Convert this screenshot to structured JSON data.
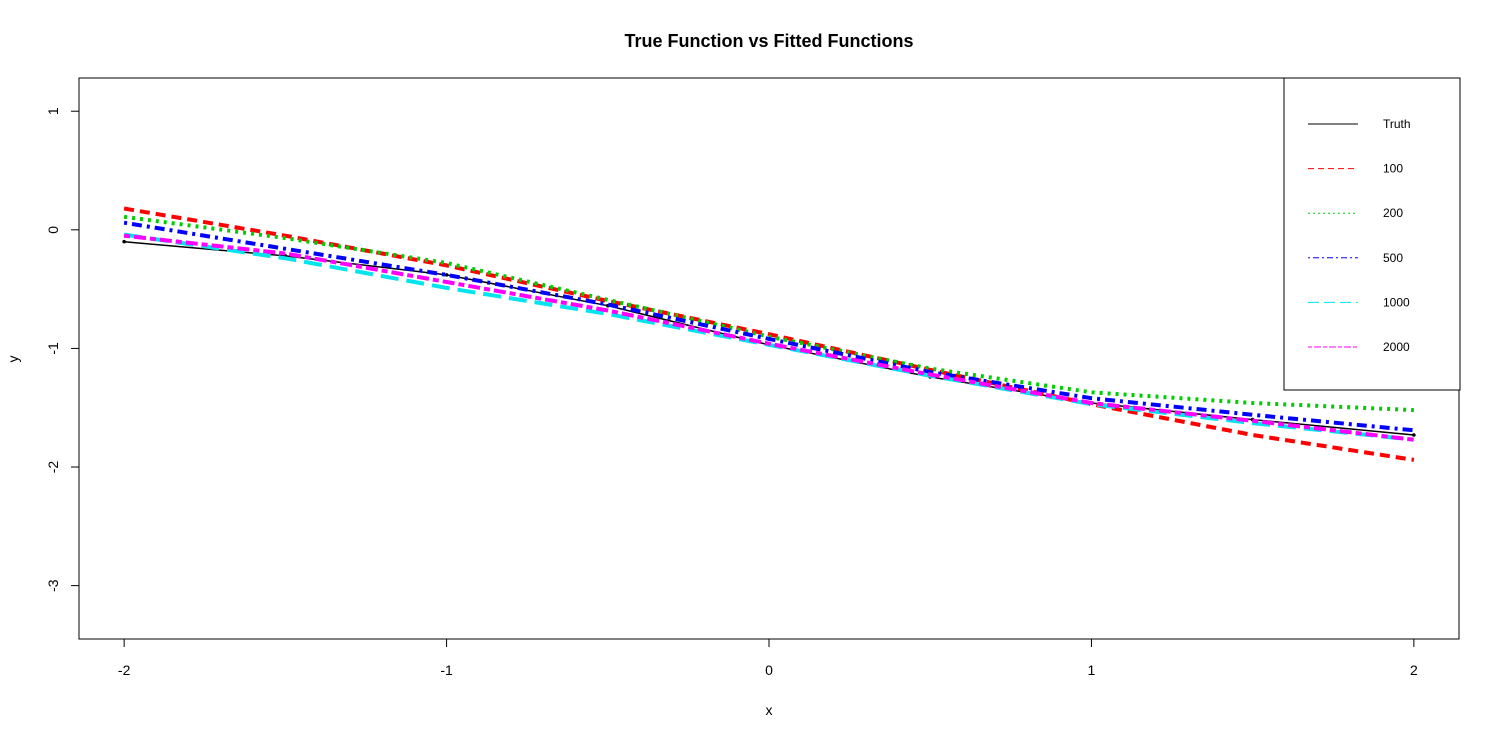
{
  "chart_data": {
    "type": "line",
    "title": "True Function vs Fitted Functions",
    "xlabel": "x",
    "ylabel": "y",
    "xlim": [
      -2.14,
      2.14
    ],
    "ylim": [
      -3.45,
      1.28
    ],
    "x_ticks": [
      -2,
      -1,
      0,
      1,
      2
    ],
    "x_tick_labels": [
      "-2",
      "-1",
      "0",
      "1",
      "2"
    ],
    "y_ticks": [
      -3,
      -2,
      -1,
      0,
      1
    ],
    "y_tick_labels": [
      "-3",
      "-2",
      "-1",
      "0",
      "1"
    ],
    "grid": false,
    "legend_position": "top-right",
    "x": [
      -2,
      -1.5,
      -1,
      -0.5,
      0,
      0.5,
      1,
      1.5,
      2
    ],
    "series": [
      {
        "name": "Truth",
        "color": "#000000",
        "style": "solid",
        "values": [
          -0.1,
          -0.22,
          -0.38,
          -0.64,
          -0.97,
          -1.24,
          -1.46,
          -1.6,
          -1.73
        ]
      },
      {
        "name": "100",
        "color": "#ff0000",
        "style": "dashed",
        "values": [
          0.18,
          -0.05,
          -0.3,
          -0.6,
          -0.88,
          -1.18,
          -1.47,
          -1.73,
          -1.94
        ]
      },
      {
        "name": "200",
        "color": "#00cd00",
        "style": "dotted",
        "values": [
          0.11,
          -0.07,
          -0.28,
          -0.59,
          -0.9,
          -1.17,
          -1.37,
          -1.46,
          -1.52
        ]
      },
      {
        "name": "500",
        "color": "#0000ff",
        "style": "dotdash",
        "values": [
          0.06,
          -0.16,
          -0.38,
          -0.63,
          -0.92,
          -1.2,
          -1.42,
          -1.56,
          -1.69
        ]
      },
      {
        "name": "1000",
        "color": "#00e5ee",
        "style": "longdash",
        "values": [
          -0.04,
          -0.24,
          -0.49,
          -0.71,
          -0.97,
          -1.23,
          -1.47,
          -1.63,
          -1.77
        ]
      },
      {
        "name": "2000",
        "color": "#ff00ff",
        "style": "twodash",
        "values": [
          -0.05,
          -0.2,
          -0.44,
          -0.68,
          -0.96,
          -1.22,
          -1.46,
          -1.61,
          -1.77
        ]
      }
    ]
  }
}
